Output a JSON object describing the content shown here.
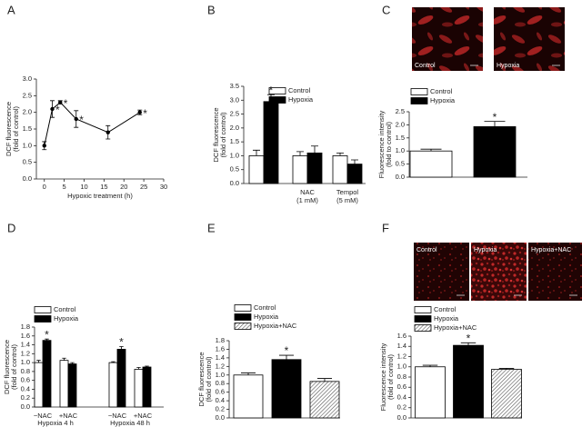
{
  "chart_data": [
    {
      "type": "line",
      "panel_label": "A",
      "x": [
        0,
        2,
        4,
        8,
        16,
        24
      ],
      "values": [
        1.0,
        2.1,
        2.3,
        1.8,
        1.4,
        2.0
      ],
      "errors": [
        0.12,
        0.25,
        0.05,
        0.25,
        0.2,
        0.07
      ],
      "star_labels": [
        null,
        "*",
        "*",
        "*",
        null,
        "*"
      ],
      "color": "#000000",
      "xlim": [
        -2,
        30
      ],
      "xticks": [
        0,
        5,
        10,
        15,
        20,
        25,
        30
      ],
      "ylim": [
        0,
        3
      ],
      "yticks": [
        {
          "value": 0,
          "label": "0.0"
        },
        {
          "value": 0.5,
          "label": "0.5"
        },
        {
          "value": 1,
          "label": "1.0"
        },
        {
          "value": 1.5,
          "label": "1.5"
        },
        {
          "value": 2,
          "label": "2.0"
        },
        {
          "value": 2.5,
          "label": "2.5"
        },
        {
          "value": 3,
          "label": "3.0"
        }
      ],
      "xlabel": "Hypoxic treatment (h)",
      "ylabel": [
        "DCF fluorescence",
        "(fold of control)"
      ]
    },
    {
      "type": "bar",
      "panel_label": "B",
      "categories": [
        null,
        [
          "NAC",
          "(1 mM)"
        ],
        [
          "Tempol",
          "(5 mM)"
        ]
      ],
      "series": [
        {
          "name": "Control",
          "color": "#ffffff",
          "values": [
            1.0,
            1.0,
            1.0
          ],
          "errors": [
            0.2,
            0.15,
            0.1
          ]
        },
        {
          "name": "Hypoxia",
          "color": "#000000",
          "values": [
            2.95,
            1.1,
            0.7
          ],
          "errors": [
            0.25,
            0.25,
            0.15
          ],
          "star_labels": [
            "*",
            null,
            null
          ]
        }
      ],
      "ylim": [
        0,
        3.5
      ],
      "yticks": [
        {
          "value": 0,
          "label": "0.0"
        },
        {
          "value": 0.5,
          "label": "0.5"
        },
        {
          "value": 1,
          "label": "1.0"
        },
        {
          "value": 1.5,
          "label": "1.5"
        },
        {
          "value": 2,
          "label": "2.0"
        },
        {
          "value": 2.5,
          "label": "2.5"
        },
        {
          "value": 3,
          "label": "3.0"
        },
        {
          "value": 3.5,
          "label": "3.5"
        }
      ],
      "ylabel": [
        "DCF fluorescence",
        "(fold of control)"
      ]
    },
    {
      "type": "bar",
      "panel_label": "C",
      "images": [
        "Control",
        "Hypoxia"
      ],
      "categories": [
        null
      ],
      "series": [
        {
          "name": "Control",
          "color": "#ffffff",
          "values": [
            1.0
          ],
          "errors": [
            0.07
          ]
        },
        {
          "name": "Hypoxia",
          "color": "#000000",
          "values": [
            1.93
          ],
          "errors": [
            0.2
          ],
          "star_labels": [
            "*"
          ]
        }
      ],
      "ylim": [
        0,
        2.5
      ],
      "yticks": [
        {
          "value": 0,
          "label": "0.0"
        },
        {
          "value": 0.5,
          "label": "0.5"
        },
        {
          "value": 1,
          "label": "1.0"
        },
        {
          "value": 1.5,
          "label": "1.5"
        },
        {
          "value": 2,
          "label": "2.0"
        },
        {
          "value": 2.5,
          "label": "2.5"
        }
      ],
      "ylabel": [
        "Fluorescence intensity",
        "(fold to control)"
      ]
    },
    {
      "type": "bar",
      "panel_label": "D",
      "categories": [
        "−NAC",
        "+NAC",
        "−NAC",
        "+NAC"
      ],
      "groups": [
        "Hypoxia 4 h",
        "Hypoxia 48 h"
      ],
      "series": [
        {
          "name": "Control",
          "color": "#ffffff",
          "values": [
            1.0,
            1.05,
            1.0,
            0.85
          ],
          "errors": [
            0.05,
            0.05,
            0.02,
            0.04
          ]
        },
        {
          "name": "Hypoxia",
          "color": "#000000",
          "values": [
            1.5,
            0.97,
            1.3,
            0.9
          ],
          "errors": [
            0.03,
            0.03,
            0.06,
            0.02
          ],
          "star_labels": [
            "*",
            null,
            "*",
            null
          ]
        }
      ],
      "ylim": [
        0,
        1.8
      ],
      "yticks": [
        {
          "value": 0,
          "label": "0.0"
        },
        {
          "value": 0.2,
          "label": "0.2"
        },
        {
          "value": 0.4,
          "label": "0.4"
        },
        {
          "value": 0.6,
          "label": "0.6"
        },
        {
          "value": 0.8,
          "label": "0.8"
        },
        {
          "value": 1,
          "label": "1.0"
        },
        {
          "value": 1.2,
          "label": "1.2"
        },
        {
          "value": 1.4,
          "label": "1.4"
        },
        {
          "value": 1.6,
          "label": "1.6"
        },
        {
          "value": 1.8,
          "label": "1.8"
        }
      ],
      "ylabel": [
        "DCF fluorescence",
        "(fold of control)"
      ]
    },
    {
      "type": "bar",
      "panel_label": "E",
      "categories": [
        null
      ],
      "series": [
        {
          "name": "Control",
          "color": "#ffffff",
          "values": [
            1.0
          ],
          "errors": [
            0.05
          ]
        },
        {
          "name": "Hypoxia",
          "color": "#000000",
          "values": [
            1.36
          ],
          "errors": [
            0.1
          ],
          "star_labels": [
            "*"
          ]
        },
        {
          "name": "Hypoxia+NAC",
          "color": "#ffffff",
          "hatch": true,
          "values": [
            0.85
          ],
          "errors": [
            0.07
          ]
        }
      ],
      "ylim": [
        0,
        1.8
      ],
      "yticks": [
        {
          "value": 0,
          "label": "0.0"
        },
        {
          "value": 0.2,
          "label": "0.2"
        },
        {
          "value": 0.4,
          "label": "0.4"
        },
        {
          "value": 0.6,
          "label": "0.6"
        },
        {
          "value": 0.8,
          "label": "0.8"
        },
        {
          "value": 1,
          "label": "1.0"
        },
        {
          "value": 1.2,
          "label": "1.2"
        },
        {
          "value": 1.4,
          "label": "1.4"
        },
        {
          "value": 1.6,
          "label": "1.6"
        },
        {
          "value": 1.8,
          "label": "1.8"
        }
      ],
      "ylabel": [
        "DCF fluorescence",
        "(fold of control)"
      ]
    },
    {
      "type": "bar",
      "panel_label": "F",
      "images": [
        "Control",
        "Hypoxia",
        "Hypoxia+NAC"
      ],
      "categories": [
        null
      ],
      "series": [
        {
          "name": "Control",
          "color": "#ffffff",
          "values": [
            1.0
          ],
          "errors": [
            0.03
          ]
        },
        {
          "name": "Hypoxia",
          "color": "#000000",
          "values": [
            1.42
          ],
          "errors": [
            0.05
          ],
          "star_labels": [
            "*"
          ]
        },
        {
          "name": "Hypoxia+NAC",
          "color": "#ffffff",
          "hatch": true,
          "values": [
            0.95
          ],
          "errors": [
            0.02
          ]
        }
      ],
      "ylim": [
        0,
        1.6
      ],
      "yticks": [
        {
          "value": 0,
          "label": "0.0"
        },
        {
          "value": 0.2,
          "label": "0.2"
        },
        {
          "value": 0.4,
          "label": "0.4"
        },
        {
          "value": 0.6,
          "label": "0.6"
        },
        {
          "value": 0.8,
          "label": "0.8"
        },
        {
          "value": 1,
          "label": "1.0"
        },
        {
          "value": 1.2,
          "label": "1.2"
        },
        {
          "value": 1.4,
          "label": "1.4"
        },
        {
          "value": 1.6,
          "label": "1.6"
        }
      ],
      "ylabel": [
        "Fluorescence intensity",
        "(fold of control)"
      ]
    }
  ]
}
